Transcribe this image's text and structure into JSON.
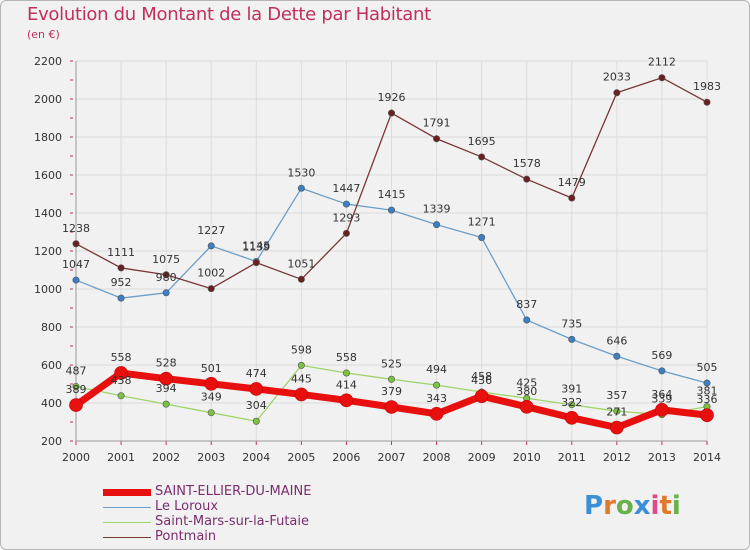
{
  "header": {
    "title": "Evolution du Montant de la Dette par Habitant",
    "subtitle": "(en €)"
  },
  "logo": {
    "text": "Proxiti",
    "letter_colors": [
      "#3b8fd4",
      "#e0792a",
      "#6ab04c",
      "#3b8fd4",
      "#e04a8a",
      "#e0792a",
      "#6ab04c"
    ]
  },
  "chart_data": {
    "type": "line",
    "title": "Evolution du Montant de la Dette par Habitant",
    "subtitle": "(en €)",
    "x": [
      "2000",
      "2001",
      "2002",
      "2003",
      "2004",
      "2005",
      "2006",
      "2007",
      "2008",
      "2009",
      "2010",
      "2011",
      "2012",
      "2013",
      "2014"
    ],
    "ylim": [
      200,
      2200
    ],
    "yticks": [
      200,
      400,
      600,
      800,
      1000,
      1200,
      1400,
      1600,
      1800,
      2000,
      2200
    ],
    "grid": true,
    "legend_position": "bottom",
    "series": [
      {
        "name": "SAINT-ELLIER-DU-MAINE",
        "color": "#e8100f",
        "marker_color": "#e8100f",
        "emphasis": true,
        "values": [
          389,
          558,
          528,
          501,
          474,
          445,
          414,
          379,
          343,
          436,
          380,
          322,
          271,
          364,
          336
        ]
      },
      {
        "name": "Le Loroux",
        "color": "#6b9ec9",
        "marker_color": "#3b7fc4",
        "emphasis": false,
        "values": [
          1047,
          952,
          980,
          1227,
          1145,
          1530,
          1447,
          1415,
          1339,
          1271,
          837,
          735,
          646,
          569,
          505
        ]
      },
      {
        "name": "Saint-Mars-sur-la-Futaie",
        "color": "#9ed46a",
        "marker_color": "#7cc142",
        "emphasis": false,
        "values": [
          487,
          438,
          394,
          349,
          304,
          598,
          558,
          525,
          494,
          458,
          425,
          391,
          357,
          339,
          381
        ]
      },
      {
        "name": "Pontmain",
        "color": "#7a3535",
        "marker_color": "#6b2020",
        "emphasis": false,
        "values": [
          1238,
          1111,
          1075,
          1002,
          1139,
          1051,
          1293,
          1926,
          1791,
          1695,
          1578,
          1479,
          2033,
          2112,
          1983
        ]
      }
    ]
  }
}
